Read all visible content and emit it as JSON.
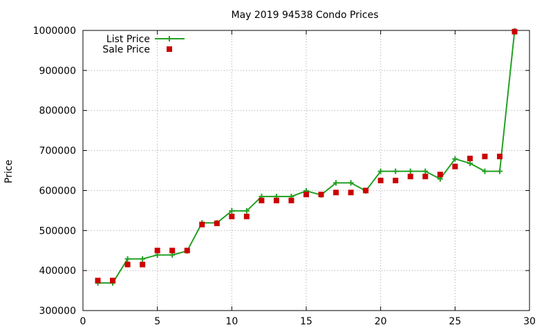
{
  "chart_data": {
    "type": "scatter",
    "title": "May 2019 94538 Condo Prices",
    "xlabel": "",
    "ylabel": "Price",
    "xlim": [
      0,
      30
    ],
    "ylim": [
      300000,
      1000000
    ],
    "x_ticks": [
      0,
      5,
      10,
      15,
      20,
      25,
      30
    ],
    "y_ticks": [
      300000,
      400000,
      500000,
      600000,
      700000,
      800000,
      900000,
      1000000
    ],
    "x_tick_labels": [
      "0",
      "5",
      "10",
      "15",
      "20",
      "25",
      "30"
    ],
    "y_tick_labels": [
      "300000",
      "400000",
      "500000",
      "600000",
      "700000",
      "800000",
      "900000",
      "1000000"
    ],
    "grid": true,
    "legend_position": "top-left",
    "series": [
      {
        "name": "List Price",
        "style": "line-with-plus-markers",
        "color": "#22a022",
        "points": [
          [
            1,
            369000
          ],
          [
            2,
            369000
          ],
          [
            3,
            429000
          ],
          [
            4,
            429000
          ],
          [
            5,
            439000
          ],
          [
            6,
            439000
          ],
          [
            7,
            449000
          ],
          [
            8,
            519000
          ],
          [
            9,
            519000
          ],
          [
            10,
            549000
          ],
          [
            11,
            549000
          ],
          [
            12,
            585000
          ],
          [
            13,
            585000
          ],
          [
            14,
            585000
          ],
          [
            15,
            599000
          ],
          [
            16,
            589000
          ],
          [
            17,
            619000
          ],
          [
            18,
            619000
          ],
          [
            19,
            599000
          ],
          [
            20,
            648000
          ],
          [
            21,
            648000
          ],
          [
            22,
            648000
          ],
          [
            23,
            648000
          ],
          [
            24,
            629000
          ],
          [
            25,
            679000
          ],
          [
            26,
            668000
          ],
          [
            27,
            648000
          ],
          [
            28,
            648000
          ],
          [
            29,
            999000
          ]
        ]
      },
      {
        "name": "Sale Price",
        "style": "square-markers",
        "color": "#cc0000",
        "points": [
          [
            1,
            375000
          ],
          [
            2,
            375000
          ],
          [
            3,
            415000
          ],
          [
            4,
            415000
          ],
          [
            5,
            450000
          ],
          [
            6,
            450000
          ],
          [
            7,
            450000
          ],
          [
            8,
            515000
          ],
          [
            9,
            518000
          ],
          [
            10,
            535000
          ],
          [
            11,
            535000
          ],
          [
            12,
            575000
          ],
          [
            13,
            575000
          ],
          [
            14,
            575000
          ],
          [
            15,
            590000
          ],
          [
            16,
            590000
          ],
          [
            17,
            595000
          ],
          [
            18,
            595000
          ],
          [
            19,
            600000
          ],
          [
            20,
            625000
          ],
          [
            21,
            625000
          ],
          [
            22,
            635000
          ],
          [
            23,
            635000
          ],
          [
            24,
            640000
          ],
          [
            25,
            660000
          ],
          [
            26,
            680000
          ],
          [
            27,
            685000
          ],
          [
            28,
            685000
          ],
          [
            29,
            997000
          ]
        ]
      }
    ]
  }
}
